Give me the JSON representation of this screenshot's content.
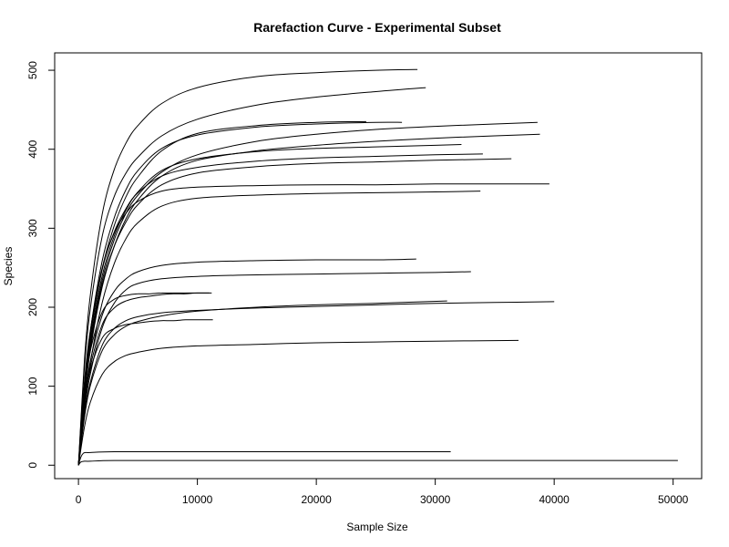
{
  "chart_data": {
    "type": "line",
    "title": "Rarefaction Curve - Experimental Subset",
    "xlabel": "Sample Size",
    "ylabel": "Species",
    "xlim": [
      -2000,
      52400
    ],
    "ylim": [
      -17,
      522
    ],
    "x_ticks": [
      0,
      10000,
      20000,
      30000,
      40000,
      50000
    ],
    "y_ticks": [
      0,
      100,
      200,
      300,
      400,
      500
    ],
    "grid": false,
    "legend": "none",
    "series": [
      {
        "x": [
          0,
          500,
          1000,
          2000,
          3000,
          4000,
          5000,
          7000,
          10000,
          15000,
          20000,
          25000,
          28500
        ],
        "y": [
          0,
          132,
          216,
          318,
          374,
          408,
          430,
          458,
          478,
          492,
          497,
          500,
          501
        ]
      },
      {
        "x": [
          0,
          500,
          1000,
          2000,
          3000,
          4000,
          5000,
          7000,
          10000,
          15000,
          20000,
          25000,
          29200
        ],
        "y": [
          0,
          123,
          199,
          290,
          340,
          370,
          390,
          417,
          438,
          456,
          466,
          473,
          478
        ]
      },
      {
        "x": [
          0,
          500,
          1000,
          2000,
          3000,
          4000,
          5000,
          7000,
          10000,
          15000,
          20000,
          24200
        ],
        "y": [
          0,
          96,
          163,
          249,
          303,
          340,
          365,
          398,
          420,
          430,
          434,
          435
        ]
      },
      {
        "x": [
          0,
          500,
          1000,
          2000,
          3000,
          4000,
          5000,
          7000,
          10000,
          15000,
          20000,
          25000,
          27200
        ],
        "y": [
          0,
          101,
          170,
          259,
          313,
          349,
          373,
          401,
          418,
          428,
          432,
          434,
          434
        ]
      },
      {
        "x": [
          0,
          500,
          1000,
          2000,
          3000,
          4000,
          5000,
          7000,
          10000,
          15000,
          20000,
          25000,
          30000,
          35000,
          38600
        ],
        "y": [
          0,
          90,
          153,
          234,
          285,
          319,
          342,
          371,
          393,
          410,
          419,
          425,
          429,
          432,
          434
        ]
      },
      {
        "x": [
          0,
          500,
          1000,
          2000,
          3000,
          4000,
          5000,
          7000,
          10000,
          15000,
          20000,
          25000,
          30000,
          35000,
          38800
        ],
        "y": [
          0,
          85,
          146,
          226,
          277,
          312,
          336,
          366,
          386,
          398,
          405,
          410,
          414,
          417,
          419
        ]
      },
      {
        "x": [
          0,
          500,
          1000,
          2000,
          3000,
          4000,
          5000,
          7000,
          10000,
          15000,
          20000,
          25000,
          30000,
          32200
        ],
        "y": [
          0,
          92,
          157,
          240,
          290,
          323,
          346,
          373,
          388,
          397,
          401,
          403,
          405,
          406
        ]
      },
      {
        "x": [
          0,
          500,
          1000,
          2000,
          3000,
          4000,
          5000,
          7000,
          10000,
          15000,
          20000,
          25000,
          30000,
          34000
        ],
        "y": [
          0,
          100,
          166,
          248,
          295,
          325,
          345,
          366,
          377,
          385,
          389,
          391,
          393,
          394
        ]
      },
      {
        "x": [
          0,
          500,
          1000,
          2000,
          3000,
          4000,
          5000,
          7000,
          10000,
          15000,
          20000,
          25000,
          30000,
          36400
        ],
        "y": [
          0,
          88,
          150,
          229,
          277,
          308,
          330,
          355,
          370,
          378,
          382,
          384,
          386,
          388
        ]
      },
      {
        "x": [
          0,
          500,
          1000,
          2000,
          3000,
          4000,
          5000,
          7000,
          10000,
          15000,
          20000,
          25000,
          30000,
          35000,
          39600
        ],
        "y": [
          0,
          105,
          171,
          250,
          294,
          319,
          334,
          347,
          352,
          354,
          355,
          355,
          356,
          356,
          356
        ]
      },
      {
        "x": [
          0,
          500,
          1000,
          2000,
          3000,
          4000,
          5000,
          7000,
          10000,
          15000,
          20000,
          25000,
          30000,
          33800
        ],
        "y": [
          0,
          75,
          130,
          206,
          255,
          287,
          307,
          328,
          338,
          342,
          344,
          345,
          346,
          347
        ]
      },
      {
        "x": [
          0,
          500,
          1000,
          2000,
          3000,
          4000,
          5000,
          7000,
          10000,
          15000,
          20000,
          25000,
          28400
        ],
        "y": [
          0,
          80,
          132,
          190,
          220,
          236,
          245,
          253,
          257,
          259,
          260,
          260,
          261
        ]
      },
      {
        "x": [
          0,
          500,
          1000,
          2000,
          3000,
          4000,
          5000,
          7000,
          10000,
          15000,
          20000,
          25000,
          30000,
          33000
        ],
        "y": [
          0,
          68,
          116,
          174,
          205,
          222,
          230,
          236,
          239,
          241,
          242,
          243,
          244,
          245
        ]
      },
      {
        "x": [
          0,
          500,
          1000,
          2000,
          3000,
          4000,
          5000,
          6000,
          7000,
          8000,
          9000,
          10000,
          11000
        ],
        "y": [
          0,
          88,
          145,
          194,
          210,
          215,
          217,
          217,
          218,
          218,
          218,
          218,
          218
        ]
      },
      {
        "x": [
          0,
          500,
          1000,
          2000,
          3000,
          4000,
          5000,
          6000,
          7000,
          8000,
          9000,
          10000,
          11200
        ],
        "y": [
          0,
          72,
          125,
          178,
          199,
          208,
          212,
          214,
          216,
          217,
          217,
          218,
          218
        ]
      },
      {
        "x": [
          0,
          500,
          1000,
          2000,
          3000,
          4000,
          5000,
          7000,
          10000,
          15000,
          20000,
          25000,
          30000,
          35000,
          40000
        ],
        "y": [
          0,
          62,
          105,
          152,
          173,
          183,
          188,
          193,
          196,
          199,
          201,
          203,
          205,
          206,
          207
        ]
      },
      {
        "x": [
          0,
          500,
          1000,
          2000,
          3000,
          4000,
          5000,
          7000,
          10000,
          15000,
          20000,
          25000,
          31000
        ],
        "y": [
          0,
          60,
          101,
          145,
          165,
          176,
          182,
          189,
          195,
          200,
          203,
          205,
          208
        ]
      },
      {
        "x": [
          0,
          500,
          1000,
          2000,
          3000,
          4000,
          5000,
          6000,
          7000,
          8000,
          9000,
          10000,
          11300
        ],
        "y": [
          0,
          75,
          121,
          161,
          173,
          178,
          180,
          182,
          183,
          183,
          184,
          184,
          184
        ]
      },
      {
        "x": [
          0,
          500,
          1000,
          2000,
          3000,
          4000,
          5000,
          7000,
          10000,
          15000,
          20000,
          25000,
          30000,
          37000
        ],
        "y": [
          0,
          48,
          80,
          115,
          131,
          139,
          143,
          148,
          151,
          153,
          155,
          156,
          157,
          158
        ]
      },
      {
        "x": [
          0,
          200,
          400,
          600,
          1000,
          3000,
          10000,
          20000,
          31300
        ],
        "y": [
          0,
          10,
          15,
          16,
          16,
          17,
          17,
          17,
          17
        ]
      },
      {
        "x": [
          0,
          200,
          500,
          1000,
          3000,
          10000,
          20000,
          30000,
          40000,
          50400
        ],
        "y": [
          0,
          4,
          5,
          5,
          6,
          6,
          6,
          6,
          6,
          6
        ]
      }
    ]
  }
}
